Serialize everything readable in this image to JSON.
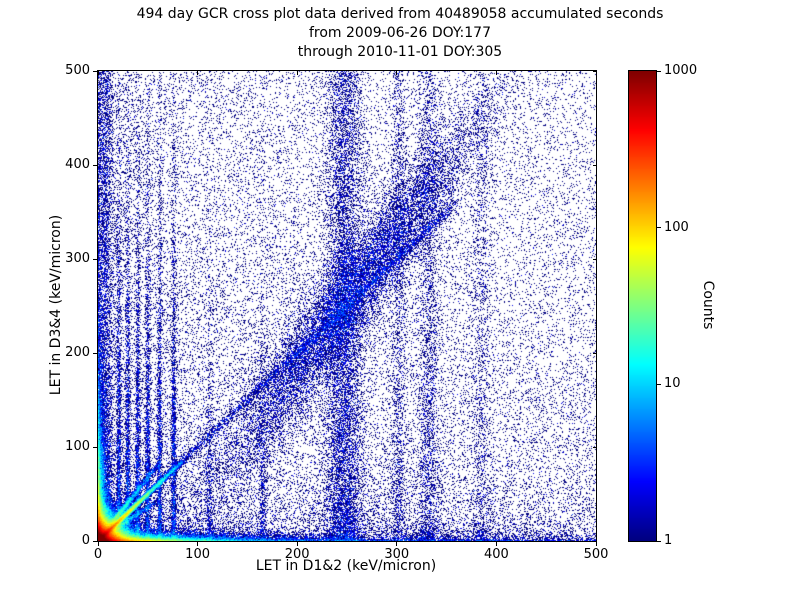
{
  "chart_data": {
    "type": "heatmap",
    "title_lines": [
      "494 day GCR cross plot data derived from 40489058 accumulated seconds",
      "from 2009-06-26 DOY:177",
      "through 2010-11-01 DOY:305"
    ],
    "source_info": {
      "duration_days": 494,
      "accumulated_seconds": 40489058,
      "start_date": "2009-06-26",
      "start_doy": 177,
      "end_date": "2010-11-01",
      "end_doy": 305
    },
    "xlabel": "LET in D1&2 (keV/micron)",
    "ylabel": "LET in D3&4 (keV/micron)",
    "xlim": [
      0,
      500
    ],
    "ylim": [
      0,
      500
    ],
    "xticks": [
      0,
      100,
      200,
      300,
      400,
      500
    ],
    "yticks": [
      0,
      100,
      200,
      300,
      400,
      500
    ],
    "grid": false,
    "background": "#ffffff",
    "colorbar": {
      "label": "Counts",
      "scale": "log",
      "min": 1,
      "max": 1000,
      "tick_values": [
        1000,
        100,
        10,
        1
      ],
      "colormap": "jet"
    },
    "seed": 1337,
    "features": [
      {
        "type": "corner",
        "n": 150000,
        "sx": 7,
        "sy": 7
      },
      {
        "type": "corner",
        "n": 25000,
        "sx": 40,
        "sy": 2.5
      },
      {
        "type": "corner",
        "n": 20000,
        "sx": 2.5,
        "sy": 40
      },
      {
        "type": "corner",
        "n": 4000,
        "sx": 200,
        "sy": 4
      },
      {
        "type": "corner",
        "n": 2500,
        "sx": 4,
        "sy": 200
      },
      {
        "type": "diag",
        "n": 30000,
        "scale": 20,
        "tmax": 85,
        "slope": 1.0,
        "jitter": 1.3
      },
      {
        "type": "diag",
        "n": 8000,
        "scale": 18,
        "tmax": 60,
        "slope": 1.35,
        "jitter": 1.5
      },
      {
        "type": "diag",
        "n": 4000,
        "scale": 18,
        "tmax": 60,
        "slope": 0.72,
        "jitter": 1.5
      },
      {
        "type": "dline",
        "n": 2600,
        "t0": 60,
        "t1": 360,
        "slope": 1.0,
        "jitter": 2.5
      },
      {
        "type": "band",
        "n": 15000,
        "cx": 250,
        "sx": 65,
        "slope": 1.4,
        "b": -95,
        "sy": 30
      },
      {
        "type": "vstreak",
        "n": 9000,
        "cx": 247,
        "sx": 10,
        "pow": 1.3
      },
      {
        "type": "vstreak",
        "n": 3000,
        "cx": 8,
        "sx": 4,
        "pow": 1.1
      },
      {
        "type": "vexp",
        "n": 1800,
        "cx": 21,
        "sx": 1.3,
        "scale": 140
      },
      {
        "type": "vexp",
        "n": 1800,
        "cx": 30,
        "sx": 1.3,
        "scale": 140
      },
      {
        "type": "vexp",
        "n": 1800,
        "cx": 40,
        "sx": 1.3,
        "scale": 140
      },
      {
        "type": "vexp",
        "n": 1800,
        "cx": 50,
        "sx": 1.3,
        "scale": 140
      },
      {
        "type": "vexp",
        "n": 1800,
        "cx": 62,
        "sx": 1.3,
        "scale": 140
      },
      {
        "type": "vexp",
        "n": 1800,
        "cx": 76,
        "sx": 1.3,
        "scale": 140
      },
      {
        "type": "vstreak",
        "n": 2500,
        "cx": 332,
        "sx": 6,
        "pow": 1.3
      },
      {
        "type": "vstreak",
        "n": 1500,
        "cx": 302,
        "sx": 4,
        "pow": 1.3
      },
      {
        "type": "vstreak",
        "n": 1200,
        "cx": 385,
        "sx": 5,
        "pow": 1.3
      },
      {
        "type": "vexp",
        "n": 600,
        "cx": 112,
        "sx": 2,
        "scale": 120
      },
      {
        "type": "vexp",
        "n": 600,
        "cx": 165,
        "sx": 2,
        "scale": 120
      },
      {
        "type": "uniform",
        "n": 12000,
        "px": 1,
        "py": 1
      },
      {
        "type": "uniform",
        "n": 18000,
        "px": 1.7,
        "py": 1.7
      },
      {
        "type": "uniform",
        "n": 8000,
        "px": 1,
        "py": 2.2
      }
    ]
  }
}
